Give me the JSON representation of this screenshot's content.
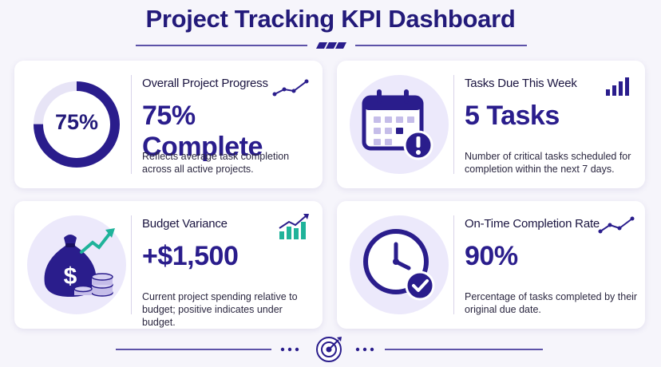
{
  "header": {
    "title": "Project Tracking KPI Dashboard"
  },
  "cards": [
    {
      "label": "Overall Project Progress",
      "value": "75% Complete",
      "ring_text": "75%",
      "progress": 0.75,
      "description": "Reflects average task completion across all active projects.",
      "icon": "progress-ring-icon",
      "trend_icon": "trend-line-icon"
    },
    {
      "label": "Tasks Due This Week",
      "value": "5 Tasks",
      "description": "Number of critical tasks scheduled for completion within the next 7 days.",
      "icon": "calendar-alert-icon",
      "trend_icon": "bar-chart-icon"
    },
    {
      "label": "Budget Variance",
      "value": "+$1,500",
      "description": "Current project spending relative to budget; positive indicates under budget.",
      "icon": "money-bag-icon",
      "trend_icon": "growth-bars-icon"
    },
    {
      "label": "On-Time Completion Rate",
      "value": "90%",
      "description": "Percentage of tasks completed by their original due date.",
      "icon": "clock-check-icon",
      "trend_icon": "trend-line-icon"
    }
  ],
  "footer": {
    "icon": "target-icon"
  },
  "colors": {
    "primary": "#2a1d8c",
    "accent_light": "#ece9fb",
    "teal": "#1fb39a",
    "background": "#f6f5fb"
  }
}
